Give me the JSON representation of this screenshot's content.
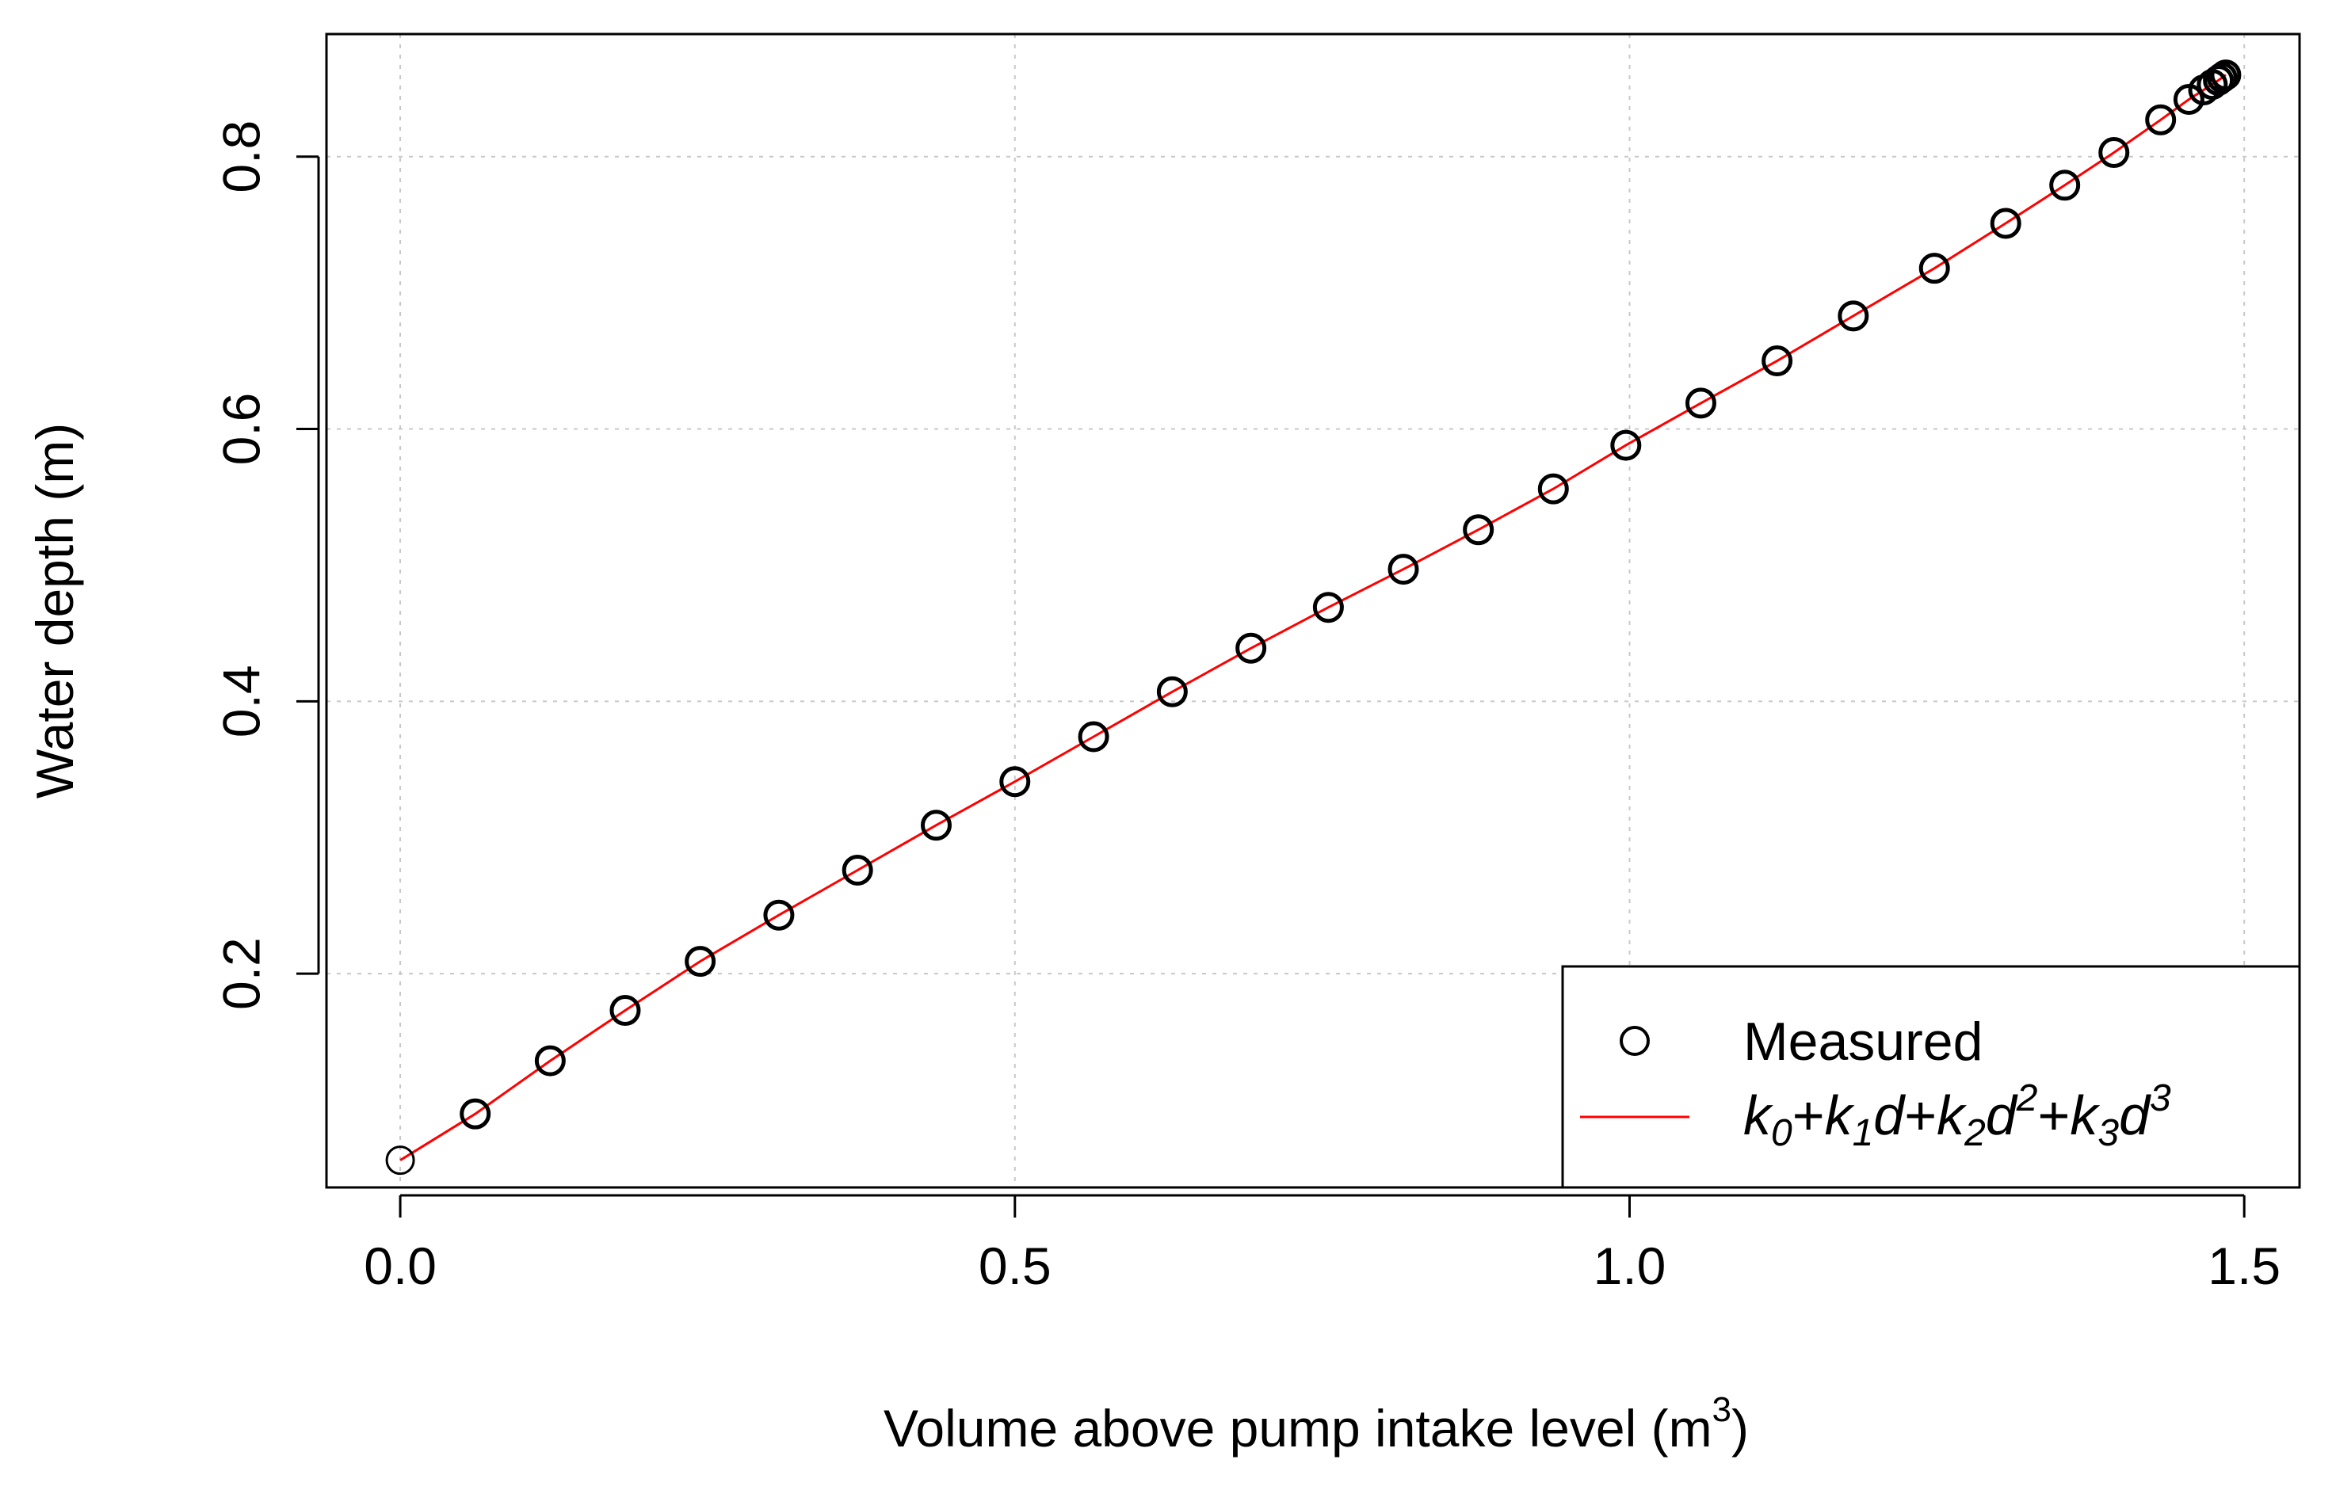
{
  "chart_data": {
    "type": "scatter",
    "title": "",
    "xlabel": "Volume above pump intake level (m",
    "xlabel_superscript": "3",
    "xlabel_suffix": ")",
    "ylabel": "Water depth (m)",
    "xlim": [
      -0.06,
      1.545
    ],
    "ylim": [
      0.043,
      0.89
    ],
    "xticks": [
      0.0,
      0.5,
      1.0,
      1.5
    ],
    "xtick_labels": [
      "0.0",
      "0.5",
      "1.0",
      "1.5"
    ],
    "yticks": [
      0.2,
      0.4,
      0.6,
      0.8
    ],
    "ytick_labels": [
      "0.2",
      "0.4",
      "0.6",
      "0.8"
    ],
    "grid": true,
    "legend_position": "bottom-right",
    "colors": {
      "measured": "#000000",
      "fit": "#ff0000",
      "grid": "#c8c8c8"
    },
    "series": [
      {
        "name": "Measured",
        "kind": "points",
        "x": [
          0.0,
          0.061,
          0.122,
          0.183,
          0.244,
          0.308,
          0.372,
          0.436,
          0.5,
          0.564,
          0.628,
          0.692,
          0.755,
          0.816,
          0.877,
          0.938,
          0.997,
          1.058,
          1.12,
          1.182,
          1.248,
          1.306,
          1.354,
          1.394,
          1.432,
          1.455,
          1.467,
          1.474,
          1.479,
          1.482,
          1.485
        ],
        "y": [
          0.063,
          0.097,
          0.136,
          0.173,
          0.209,
          0.243,
          0.276,
          0.309,
          0.341,
          0.374,
          0.407,
          0.439,
          0.469,
          0.497,
          0.526,
          0.556,
          0.588,
          0.619,
          0.65,
          0.683,
          0.718,
          0.751,
          0.779,
          0.803,
          0.827,
          0.842,
          0.849,
          0.853,
          0.856,
          0.858,
          0.86
        ]
      },
      {
        "name": "k0+k1d+k2d2+k3d3",
        "kind": "line",
        "x": [
          0.0,
          0.061,
          0.122,
          0.183,
          0.244,
          0.308,
          0.372,
          0.436,
          0.5,
          0.564,
          0.628,
          0.692,
          0.755,
          0.816,
          0.877,
          0.938,
          0.997,
          1.058,
          1.12,
          1.182,
          1.248,
          1.306,
          1.354,
          1.394,
          1.432,
          1.455,
          1.467,
          1.474,
          1.479,
          1.482,
          1.485
        ],
        "y": [
          0.063,
          0.097,
          0.136,
          0.173,
          0.209,
          0.243,
          0.276,
          0.309,
          0.341,
          0.374,
          0.407,
          0.439,
          0.469,
          0.497,
          0.526,
          0.556,
          0.588,
          0.619,
          0.65,
          0.683,
          0.718,
          0.751,
          0.779,
          0.803,
          0.827,
          0.842,
          0.849,
          0.853,
          0.856,
          0.858,
          0.86
        ]
      }
    ],
    "legend": {
      "measured_label": "Measured",
      "fit_label": {
        "k": "k",
        "sub0": "0",
        "plus": "+",
        "sub1": "1",
        "d": "d",
        "sub2": "2",
        "sup2": "2",
        "sub3": "3",
        "sup3": "3"
      }
    }
  }
}
